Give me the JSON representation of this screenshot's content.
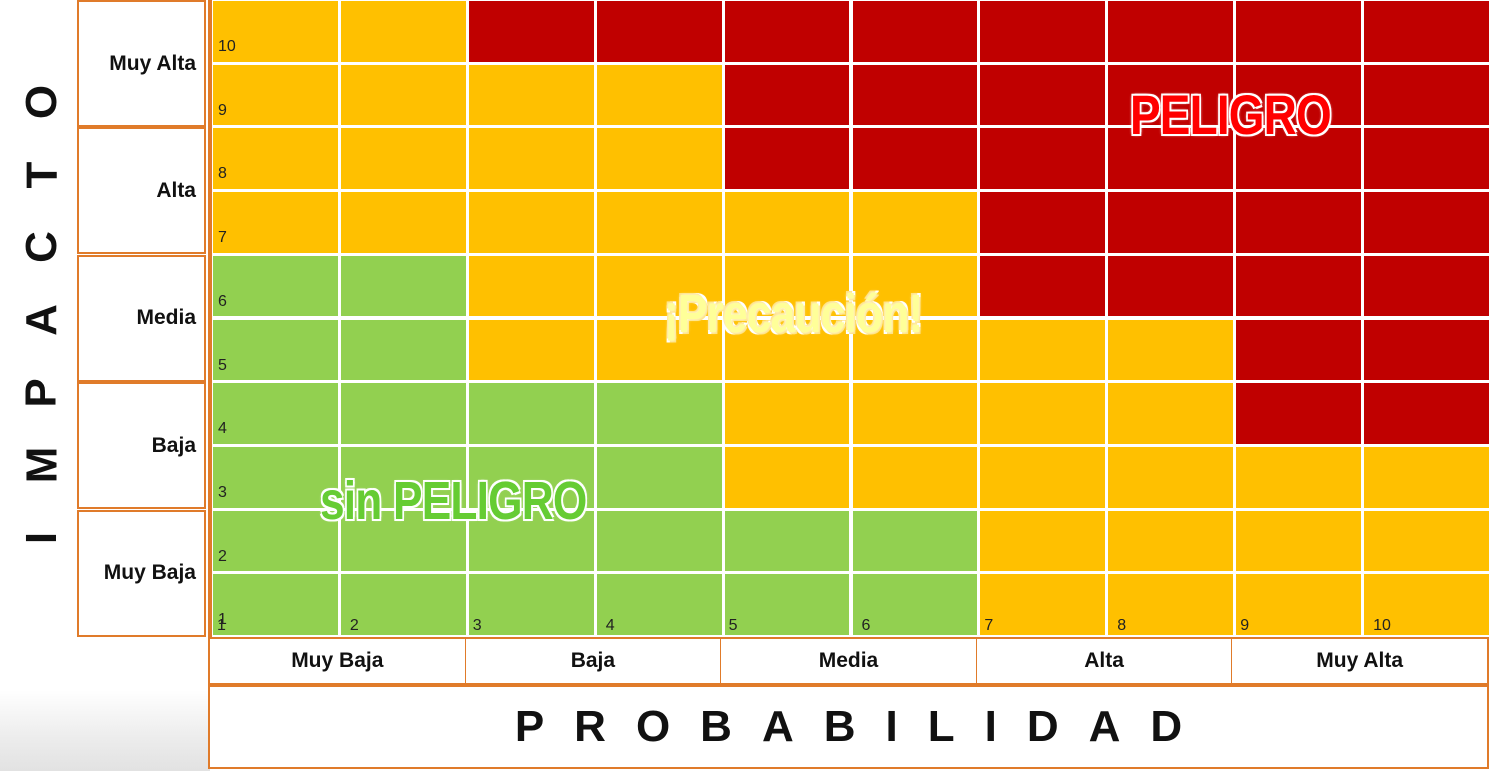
{
  "axes": {
    "impact_title": "IMPACTO",
    "probability_title": "PROBABILIDAD",
    "impact_levels": [
      "Muy Alta",
      "Alta",
      "Media",
      "Baja",
      "Muy Baja"
    ],
    "probability_levels": [
      "Muy Baja",
      "Baja",
      "Media",
      "Alta",
      "Muy Alta"
    ],
    "row_numbers": [
      "10",
      "9",
      "8",
      "7",
      "6",
      "5",
      "4",
      "3",
      "2",
      "1"
    ],
    "col_numbers": [
      "1",
      "2",
      "3",
      "4",
      "5",
      "6",
      "7",
      "8",
      "9",
      "10"
    ]
  },
  "zones": {
    "danger": "PELIGRO",
    "caution": "¡Precaución!",
    "safe": "sin PELIGRO"
  },
  "colors": {
    "green": "#92d050",
    "yellow": "#ffc000",
    "red": "#c00000",
    "border": "#e07b2a"
  },
  "matrix": [
    [
      "y",
      "y",
      "r",
      "r",
      "r",
      "r",
      "r",
      "r",
      "r",
      "r"
    ],
    [
      "y",
      "y",
      "y",
      "y",
      "r",
      "r",
      "r",
      "r",
      "r",
      "r"
    ],
    [
      "y",
      "y",
      "y",
      "y",
      "r",
      "r",
      "r",
      "r",
      "r",
      "r"
    ],
    [
      "y",
      "y",
      "y",
      "y",
      "y",
      "y",
      "r",
      "r",
      "r",
      "r"
    ],
    [
      "g",
      "g",
      "y",
      "y",
      "y",
      "y",
      "r",
      "r",
      "r",
      "r"
    ],
    [
      "g",
      "g",
      "y",
      "y",
      "y",
      "y",
      "y",
      "y",
      "r",
      "r"
    ],
    [
      "g",
      "g",
      "g",
      "g",
      "y",
      "y",
      "y",
      "y",
      "r",
      "r"
    ],
    [
      "g",
      "g",
      "g",
      "g",
      "y",
      "y",
      "y",
      "y",
      "y",
      "y"
    ],
    [
      "g",
      "g",
      "g",
      "g",
      "g",
      "g",
      "y",
      "y",
      "y",
      "y"
    ],
    [
      "g",
      "g",
      "g",
      "g",
      "g",
      "g",
      "y",
      "y",
      "y",
      "y"
    ]
  ]
}
